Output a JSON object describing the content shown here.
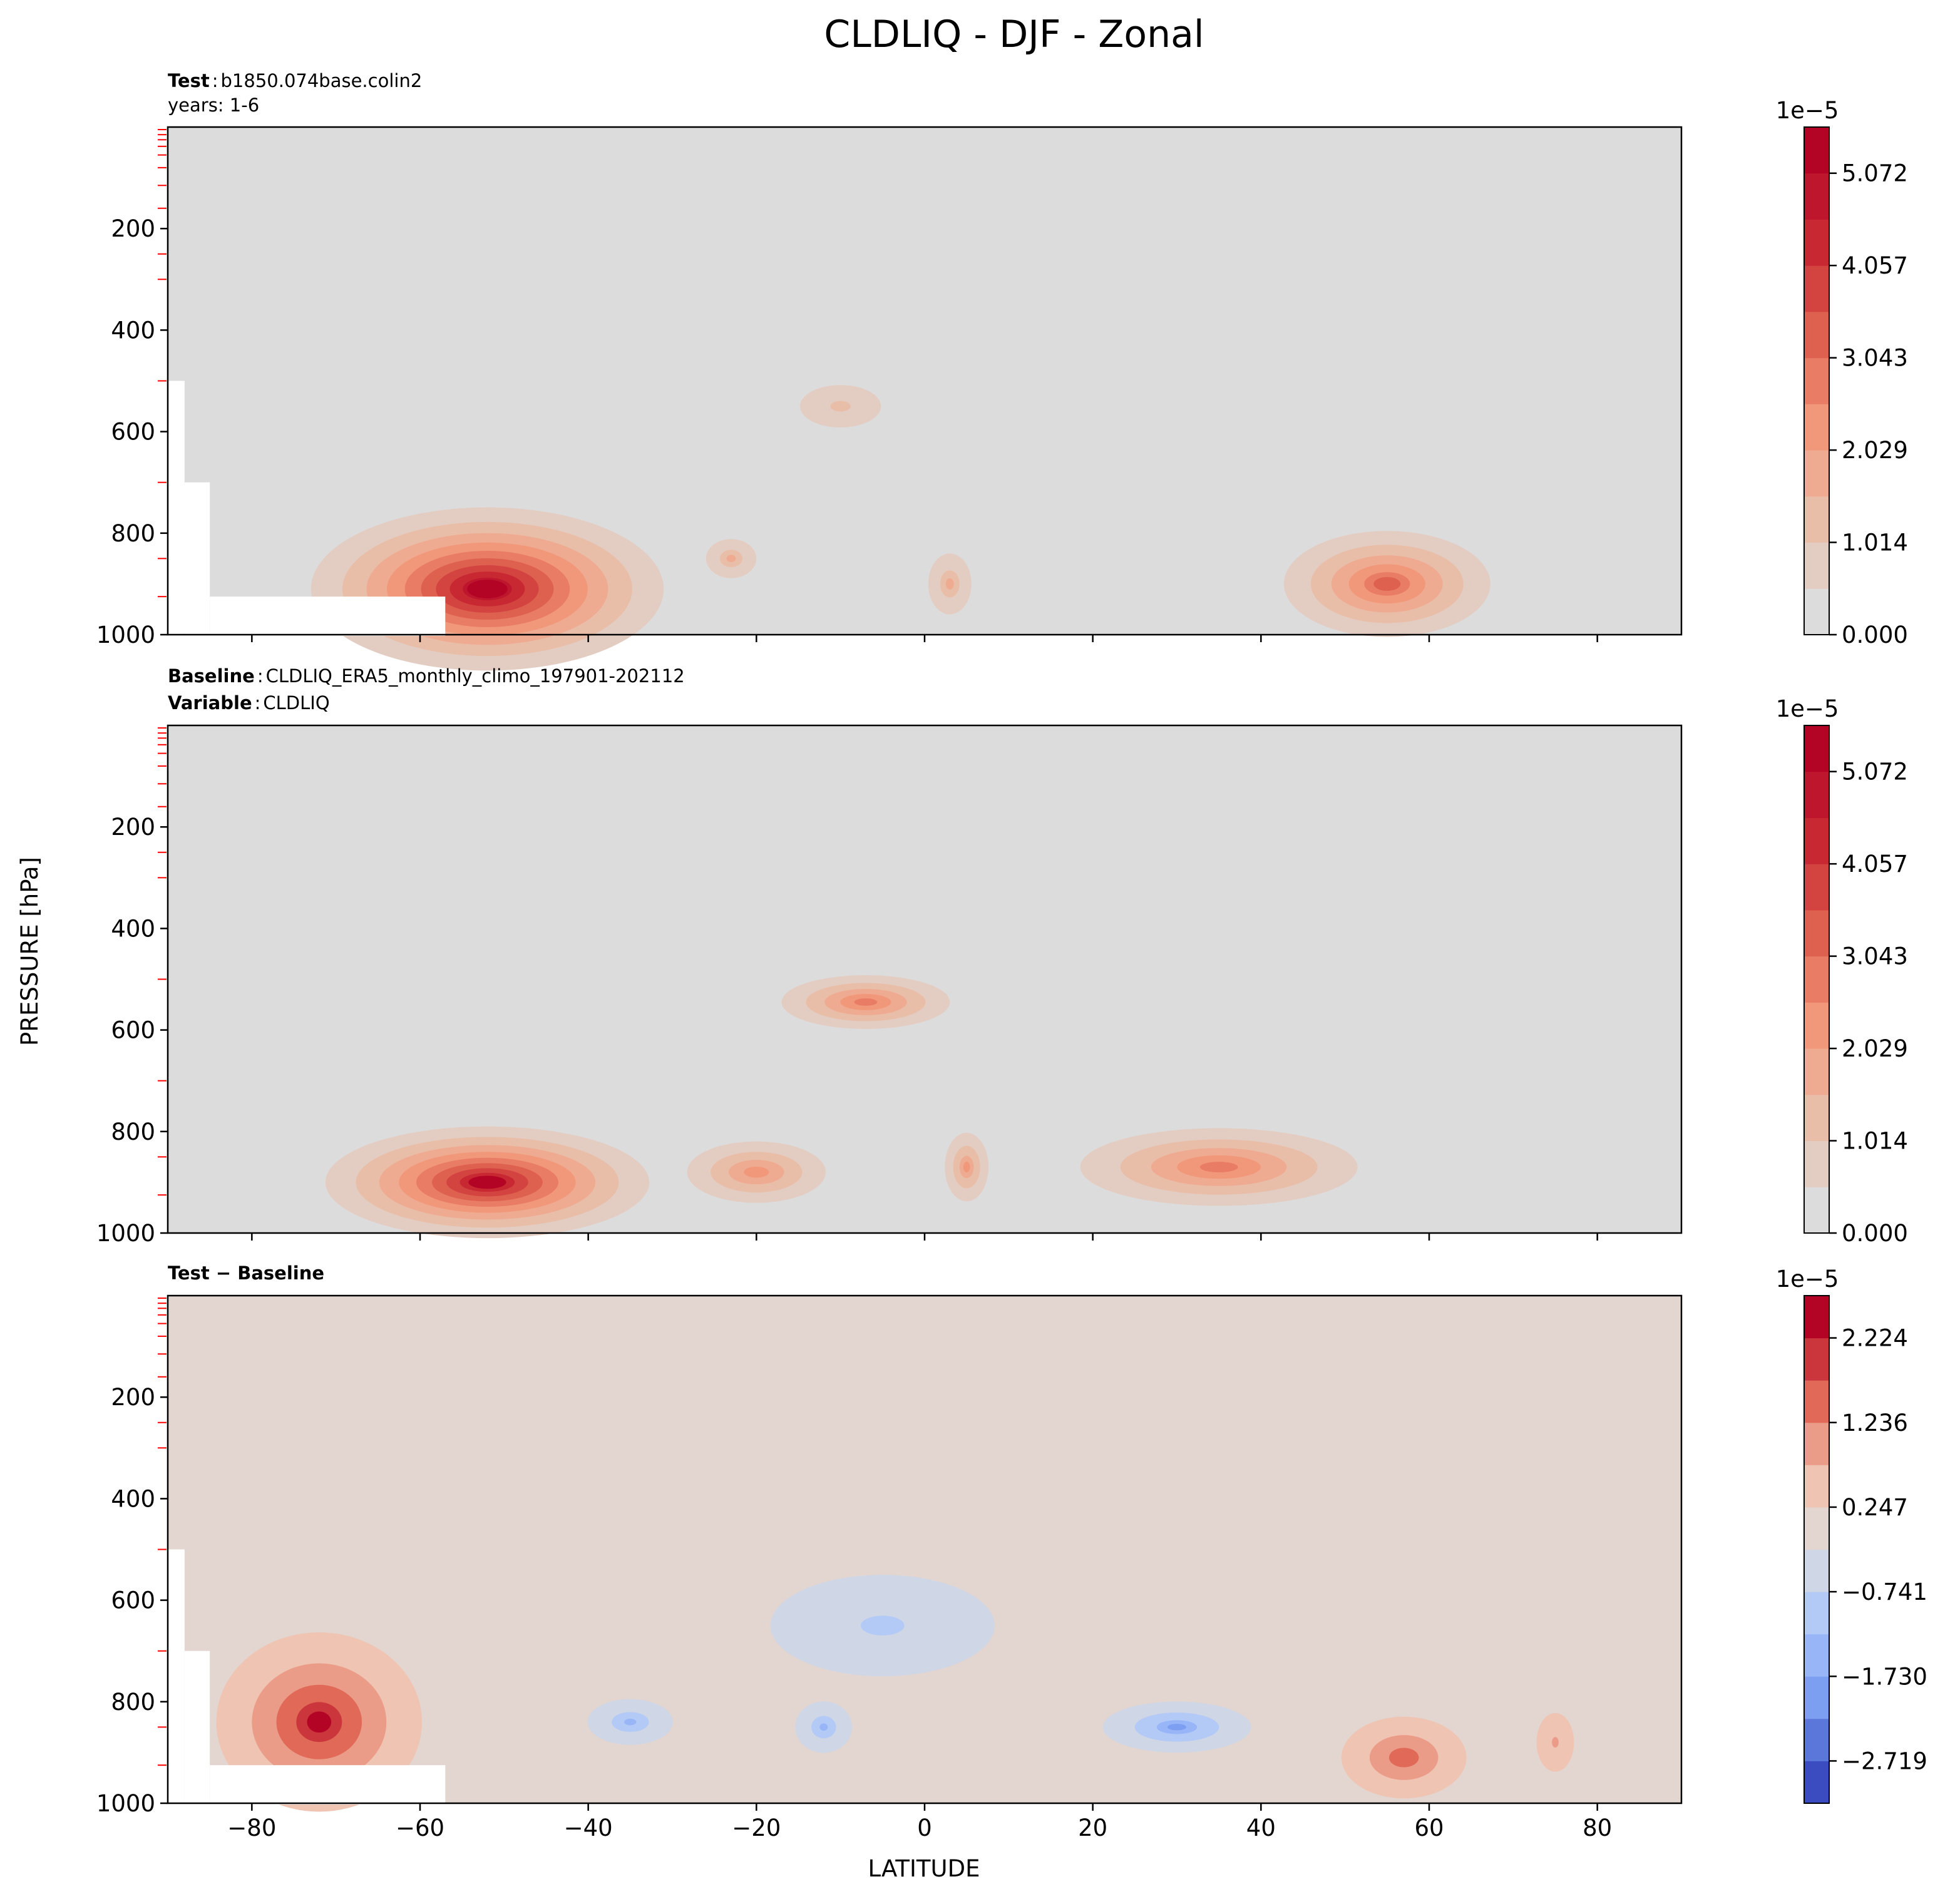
{
  "suptitle": "CLDLIQ - DJF - Zonal",
  "shared_axes": {
    "xlabel": "LATITUDE",
    "ylabel": "PRESSURE [hPa]",
    "xlim": [
      -90,
      90
    ],
    "ylim": [
      1000,
      0
    ],
    "x_ticks": [
      -80,
      -60,
      -40,
      -20,
      0,
      20,
      40,
      60,
      80
    ],
    "y_ticks": [
      200,
      400,
      600,
      800,
      1000
    ]
  },
  "panels": [
    {
      "id": "test",
      "annotation": {
        "label": "Test",
        "sep": ":",
        "value": "b1850.074base.colin2",
        "line2": "years: 1-6"
      },
      "colorbar": {
        "offset_text": "1e−5",
        "ticks": [
          "0.000",
          "1.014",
          "2.029",
          "3.043",
          "4.057",
          "5.072"
        ]
      }
    },
    {
      "id": "baseline",
      "annotation": {
        "label": "Baseline",
        "sep": ":",
        "value": "CLDLIQ_ERA5_monthly_climo_197901-202112",
        "label2": "Variable",
        "value2": "CLDLIQ"
      },
      "colorbar": {
        "offset_text": "1e−5",
        "ticks": [
          "0.000",
          "1.014",
          "2.029",
          "3.043",
          "4.057",
          "5.072"
        ]
      }
    },
    {
      "id": "difference",
      "annotation": {
        "label": "Test − Baseline"
      },
      "colorbar": {
        "offset_text": "1e−5",
        "ticks": [
          "−2.719",
          "−1.730",
          "−0.741",
          "0.247",
          "1.236",
          "2.224"
        ]
      }
    }
  ],
  "chart_data": [
    {
      "type": "heatmap",
      "plot": "filled contour (latitude-pressure)",
      "panel": "Test",
      "x": "latitude",
      "y": "pressure (hPa)",
      "xlim": [
        -90,
        90
      ],
      "ylim": [
        1000,
        0
      ],
      "colormap": "coolwarm",
      "colorbar_scale": "1e-5",
      "levels": [
        0.0,
        0.507,
        1.014,
        1.521,
        2.029,
        2.536,
        3.043,
        3.55,
        4.057,
        4.564,
        5.072,
        5.579
      ],
      "missing_below_surface": [
        {
          "lat": [
            -90,
            -88
          ],
          "p_min": 500
        },
        {
          "lat": [
            -88,
            -85
          ],
          "p_min": 700
        },
        {
          "lat": [
            -85,
            -57
          ],
          "p_min": 925
        }
      ],
      "features": [
        {
          "lat_center": -52,
          "p_center": 910,
          "lat_half_width": 30,
          "p_half_width": 230,
          "peak": 5.6,
          "note": "Southern Ocean maximum"
        },
        {
          "lat_center": 55,
          "p_center": 900,
          "lat_half_width": 20,
          "p_half_width": 170,
          "peak": 3.4,
          "note": "Northern mid-latitude maximum"
        },
        {
          "lat_center": -23,
          "p_center": 850,
          "lat_half_width": 7,
          "p_half_width": 90,
          "peak": 1.55
        },
        {
          "lat_center": 3,
          "p_center": 900,
          "lat_half_width": 6,
          "p_half_width": 140,
          "peak": 1.55
        },
        {
          "lat_center": -10,
          "p_center": 550,
          "lat_half_width": 15,
          "p_half_width": 130,
          "peak": 1.1
        }
      ]
    },
    {
      "type": "heatmap",
      "plot": "filled contour (latitude-pressure)",
      "panel": "Baseline",
      "x": "latitude",
      "y": "pressure (hPa)",
      "xlim": [
        -90,
        90
      ],
      "ylim": [
        1000,
        0
      ],
      "colormap": "coolwarm",
      "colorbar_scale": "1e-5",
      "levels": [
        0.0,
        0.507,
        1.014,
        1.521,
        2.029,
        2.536,
        3.043,
        3.55,
        4.057,
        4.564,
        5.072,
        5.579
      ],
      "features": [
        {
          "lat_center": -52,
          "p_center": 900,
          "lat_half_width": 28,
          "p_half_width": 160,
          "peak": 5.2,
          "note": "Southern Ocean maximum"
        },
        {
          "lat_center": -7,
          "p_center": 545,
          "lat_half_width": 17,
          "p_half_width": 90,
          "peak": 3.0,
          "note": "tropical mid-level maximum"
        },
        {
          "lat_center": 35,
          "p_center": 870,
          "lat_half_width": 28,
          "p_half_width": 130,
          "peak": 3.0
        },
        {
          "lat_center": -20,
          "p_center": 880,
          "lat_half_width": 15,
          "p_half_width": 110,
          "peak": 2.5
        },
        {
          "lat_center": 5,
          "p_center": 870,
          "lat_half_width": 5,
          "p_half_width": 130,
          "peak": 2.2
        }
      ]
    },
    {
      "type": "heatmap",
      "plot": "filled contour (latitude-pressure)",
      "panel": "Test − Baseline",
      "x": "latitude",
      "y": "pressure (hPa)",
      "xlim": [
        -90,
        90
      ],
      "ylim": [
        1000,
        0
      ],
      "colormap": "coolwarm",
      "colorbar_scale": "1e-5",
      "levels": [
        -3.214,
        -2.719,
        -2.225,
        -1.73,
        -1.236,
        -0.741,
        -0.247,
        0.247,
        0.741,
        1.236,
        1.73,
        2.224,
        2.719
      ],
      "missing_below_surface": [
        {
          "lat": [
            -90,
            -88
          ],
          "p_min": 500
        },
        {
          "lat": [
            -88,
            -85
          ],
          "p_min": 700
        },
        {
          "lat": [
            -85,
            -57
          ],
          "p_min": 925
        }
      ],
      "features": [
        {
          "lat_center": -72,
          "p_center": 840,
          "lat_half_width": 18,
          "p_half_width": 260,
          "peak": 2.4,
          "note": "positive, Southern high latitudes"
        },
        {
          "lat_center": 57,
          "p_center": 910,
          "lat_half_width": 12,
          "p_half_width": 130,
          "peak": 1.7,
          "note": "positive"
        },
        {
          "lat_center": 75,
          "p_center": 880,
          "lat_half_width": 5,
          "p_half_width": 130,
          "peak": 0.8
        },
        {
          "lat_center": -5,
          "p_center": 650,
          "lat_half_width": 28,
          "p_half_width": 210,
          "peak": -0.9,
          "note": "negative, tropics"
        },
        {
          "lat_center": -35,
          "p_center": 840,
          "lat_half_width": 9,
          "p_half_width": 80,
          "peak": -1.3
        },
        {
          "lat_center": -12,
          "p_center": 850,
          "lat_half_width": 6,
          "p_half_width": 90,
          "peak": -1.3
        },
        {
          "lat_center": 30,
          "p_center": 850,
          "lat_half_width": 14,
          "p_half_width": 80,
          "peak": -1.8
        }
      ]
    }
  ]
}
